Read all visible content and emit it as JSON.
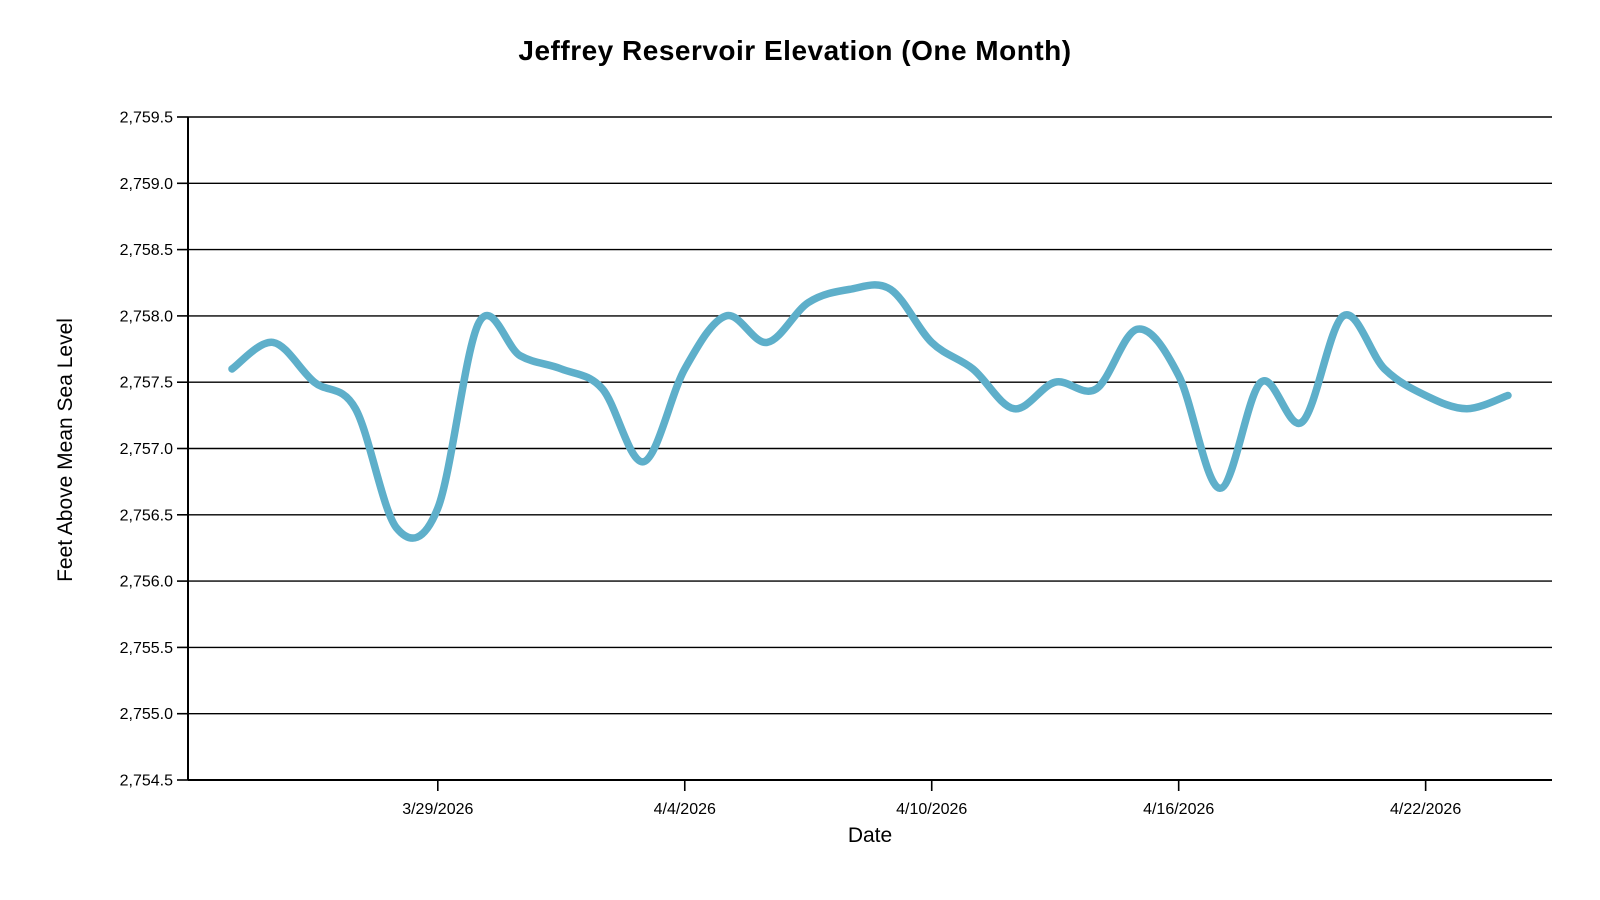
{
  "chart_data": {
    "type": "line",
    "title": "Jeffrey Reservoir Elevation (One Month)",
    "xlabel": "Date",
    "ylabel": "Feet Above Mean Sea Level",
    "ylim": [
      2754.5,
      2759.5
    ],
    "grid": "horizontal-only",
    "legend": "none",
    "line_color": "#5EAFCA",
    "axis_color": "#000000",
    "background_color": "#FFFFFF",
    "y_ticks": [
      {
        "value": 2754.5,
        "label": "2,754.5"
      },
      {
        "value": 2755.0,
        "label": "2,755.0"
      },
      {
        "value": 2755.5,
        "label": "2,755.5"
      },
      {
        "value": 2756.0,
        "label": "2,756.0"
      },
      {
        "value": 2756.5,
        "label": "2,756.5"
      },
      {
        "value": 2757.0,
        "label": "2,757.0"
      },
      {
        "value": 2757.5,
        "label": "2,757.5"
      },
      {
        "value": 2758.0,
        "label": "2,758.0"
      },
      {
        "value": 2758.5,
        "label": "2,758.5"
      },
      {
        "value": 2759.0,
        "label": "2,759.0"
      },
      {
        "value": 2759.5,
        "label": "2,759.5"
      }
    ],
    "x_ticks": [
      {
        "date": "3/29/2026",
        "label": "3/29/2026"
      },
      {
        "date": "4/4/2026",
        "label": "4/4/2026"
      },
      {
        "date": "4/10/2026",
        "label": "4/10/2026"
      },
      {
        "date": "4/16/2026",
        "label": "4/16/2026"
      },
      {
        "date": "4/22/2026",
        "label": "4/22/2026"
      }
    ],
    "series": [
      {
        "name": "Reservoir Elevation",
        "points": [
          {
            "date": "3/24/2026",
            "value": 2757.6
          },
          {
            "date": "3/25/2026",
            "value": 2757.8
          },
          {
            "date": "3/26/2026",
            "value": 2757.5
          },
          {
            "date": "3/27/2026",
            "value": 2757.3
          },
          {
            "date": "3/28/2026",
            "value": 2756.4
          },
          {
            "date": "3/29/2026",
            "value": 2756.55
          },
          {
            "date": "3/30/2026",
            "value": 2757.95
          },
          {
            "date": "3/31/2026",
            "value": 2757.7
          },
          {
            "date": "4/1/2026",
            "value": 2757.6
          },
          {
            "date": "4/2/2026",
            "value": 2757.45
          },
          {
            "date": "4/3/2026",
            "value": 2756.9
          },
          {
            "date": "4/4/2026",
            "value": 2757.6
          },
          {
            "date": "4/5/2026",
            "value": 2758.0
          },
          {
            "date": "4/6/2026",
            "value": 2757.8
          },
          {
            "date": "4/7/2026",
            "value": 2758.1
          },
          {
            "date": "4/8/2026",
            "value": 2758.2
          },
          {
            "date": "4/9/2026",
            "value": 2758.2
          },
          {
            "date": "4/10/2026",
            "value": 2757.8
          },
          {
            "date": "4/11/2026",
            "value": 2757.6
          },
          {
            "date": "4/12/2026",
            "value": 2757.3
          },
          {
            "date": "4/13/2026",
            "value": 2757.5
          },
          {
            "date": "4/14/2026",
            "value": 2757.45
          },
          {
            "date": "4/15/2026",
            "value": 2757.9
          },
          {
            "date": "4/16/2026",
            "value": 2757.55
          },
          {
            "date": "4/17/2026",
            "value": 2756.7
          },
          {
            "date": "4/18/2026",
            "value": 2757.5
          },
          {
            "date": "4/19/2026",
            "value": 2757.2
          },
          {
            "date": "4/20/2026",
            "value": 2758.0
          },
          {
            "date": "4/21/2026",
            "value": 2757.6
          },
          {
            "date": "4/22/2026",
            "value": 2757.4
          },
          {
            "date": "4/23/2026",
            "value": 2757.3
          },
          {
            "date": "4/24/2026",
            "value": 2757.4
          }
        ]
      }
    ]
  }
}
